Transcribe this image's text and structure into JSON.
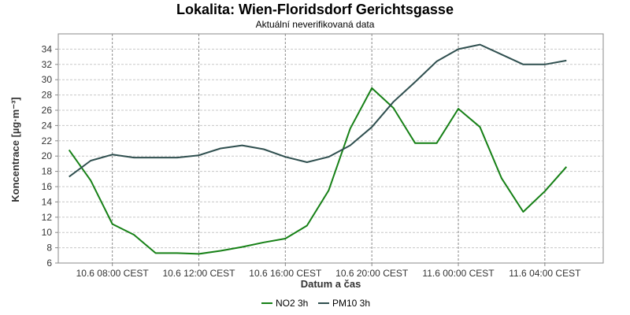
{
  "chart_data": {
    "type": "line",
    "title": "Lokalita: Wien-Floridsdorf Gerichtsgasse",
    "subtitle": "Aktuální neverifikovaná data",
    "xlabel": "Datum a čas",
    "ylabel": "Koncentrace [µg·m⁻³]",
    "ylim": [
      6,
      36
    ],
    "yticks": [
      6,
      8,
      10,
      12,
      14,
      16,
      18,
      20,
      22,
      24,
      26,
      28,
      30,
      32,
      34
    ],
    "x_hours": [
      6,
      7,
      8,
      9,
      10,
      11,
      12,
      13,
      14,
      15,
      16,
      17,
      18,
      19,
      20,
      21,
      22,
      23,
      24,
      25,
      26,
      27,
      28,
      29,
      30
    ],
    "xlim_hours": [
      5.5,
      30.7
    ],
    "xticks": [
      {
        "hour": 8,
        "label": "10.6 08:00 CEST"
      },
      {
        "hour": 12,
        "label": "10.6 12:00 CEST"
      },
      {
        "hour": 16,
        "label": "10.6 16:00 CEST"
      },
      {
        "hour": 20,
        "label": "10.6 20:00 CEST"
      },
      {
        "hour": 24,
        "label": "11.6 00:00 CEST"
      },
      {
        "hour": 28,
        "label": "11.6 04:00 CEST"
      }
    ],
    "grid": true,
    "legend_position": "bottom",
    "series": [
      {
        "name": "NO2 3h",
        "color": "#168016",
        "values": [
          20.8,
          16.8,
          11.1,
          9.7,
          7.3,
          7.3,
          7.2,
          7.6,
          8.1,
          8.7,
          9.2,
          10.9,
          15.5,
          23.6,
          28.9,
          26.3,
          21.7,
          21.7,
          26.2,
          23.8,
          17.1,
          12.7,
          15.4,
          18.6,
          null
        ]
      },
      {
        "name": "PM10 3h",
        "color": "#2f4f4f",
        "values": [
          17.3,
          19.4,
          20.2,
          19.8,
          19.8,
          19.8,
          20.1,
          21.0,
          21.4,
          20.9,
          19.9,
          19.2,
          19.9,
          21.4,
          23.8,
          27.1,
          29.7,
          32.4,
          34.0,
          34.6,
          33.3,
          32.0,
          32.0,
          32.5,
          null
        ]
      }
    ]
  }
}
